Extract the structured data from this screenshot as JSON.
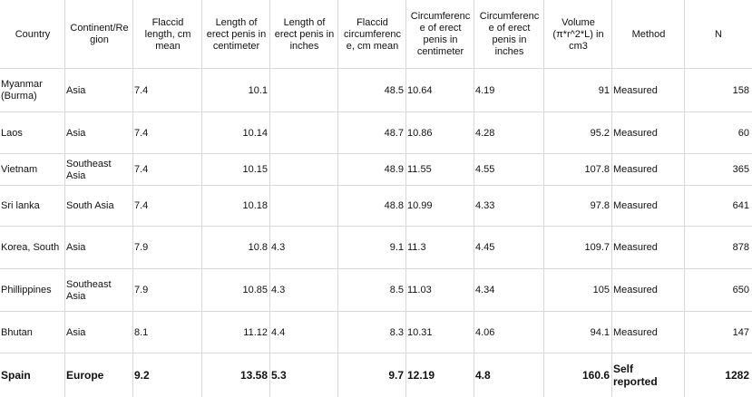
{
  "table": {
    "headers": [
      "Country",
      "Continent/Re\ngion",
      "Flaccid\nlength, cm\nmean",
      "Length of\nerect penis in\ncentimeter",
      "Length of\nerect penis in\ninches",
      "Flaccid\ncircumferenc\ne, cm mean",
      "Circumferenc\ne of erect\npenis in\ncentimeter",
      "Circumferenc\ne of erect\npenis in\ninches",
      "Volume\n(π*r^2*L) in\ncm3",
      "Method",
      "N"
    ],
    "rows": [
      [
        "Myanmar\n(Burma)",
        "Asia",
        "7.4",
        "10.1",
        "",
        "48.5",
        "10.64",
        "4.19",
        "91",
        "Measured",
        "158"
      ],
      [
        "Laos",
        "Asia",
        "7.4",
        "10.14",
        "",
        "48.7",
        "10.86",
        "4.28",
        "95.2",
        "Measured",
        "60"
      ],
      [
        "Vietnam",
        "Southeast\nAsia",
        "7.4",
        "10.15",
        "",
        "48.9",
        "11.55",
        "4.55",
        "107.8",
        "Measured",
        "365"
      ],
      [
        "Sri lanka",
        "South Asia",
        "7.4",
        "10.18",
        "",
        "48.8",
        "10.99",
        "4.33",
        "97.8",
        "Measured",
        "641"
      ],
      [
        "Korea, South",
        "Asia",
        "7.9",
        "10.8",
        "4.3",
        "9.1",
        "11.3",
        "4.45",
        "109.7",
        "Measured",
        "878"
      ],
      [
        "Phillippines",
        "Southeast\nAsia",
        "7.9",
        "10.85",
        "4.3",
        "8.5",
        "11.03",
        "4.34",
        "105",
        "Measured",
        "650"
      ],
      [
        "Bhutan",
        "Asia",
        "8.1",
        "11.12",
        "4.4",
        "8.3",
        "10.31",
        "4.06",
        "94.1",
        "Measured",
        "147"
      ],
      [
        "Spain",
        "Europe",
        "9.2",
        "13.58",
        "5.3",
        "9.7",
        "12.19",
        "4.8",
        "160.6",
        "Self\nreported",
        "1282"
      ]
    ]
  },
  "colors": {
    "grid": "#d8d8d8",
    "text": "#111111",
    "background": "#ffffff"
  }
}
